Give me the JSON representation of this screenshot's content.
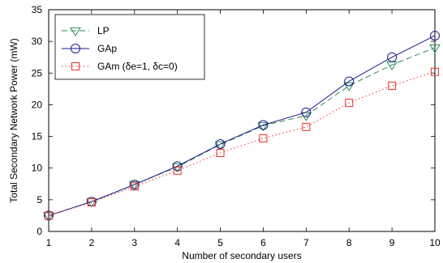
{
  "chart_data": {
    "type": "line",
    "title": "",
    "xlabel": "Number of secondary users",
    "ylabel": "Total Secondary Network Power (mW)",
    "x": [
      1,
      2,
      3,
      4,
      5,
      6,
      7,
      8,
      9,
      10
    ],
    "xlim": [
      1,
      10
    ],
    "ylim": [
      0,
      35
    ],
    "xticks": [
      "1",
      "2",
      "3",
      "4",
      "5",
      "6",
      "7",
      "8",
      "9",
      "10"
    ],
    "yticks": [
      "0",
      "5",
      "10",
      "15",
      "20",
      "25",
      "30",
      "35"
    ],
    "grid": false,
    "legend_position": "top-left",
    "series": [
      {
        "name": "LP",
        "values": [
          2.5,
          4.7,
          7.4,
          10.2,
          13.7,
          16.7,
          18.3,
          23.0,
          26.3,
          29.0
        ],
        "color": "#2e8b57",
        "line": "dashed",
        "marker": "triangle-down"
      },
      {
        "name": "GAp",
        "values": [
          2.5,
          4.7,
          7.4,
          10.3,
          13.8,
          16.8,
          18.8,
          23.7,
          27.5,
          30.9
        ],
        "color": "#1a1a8c",
        "line": "solid",
        "marker": "circle"
      },
      {
        "name": "GAm (δe=1, δc=0)",
        "values": [
          2.5,
          4.6,
          7.1,
          9.6,
          12.4,
          14.7,
          16.5,
          20.3,
          23.0,
          25.2
        ],
        "color": "#e8302a",
        "line": "dotted",
        "marker": "square"
      }
    ]
  }
}
